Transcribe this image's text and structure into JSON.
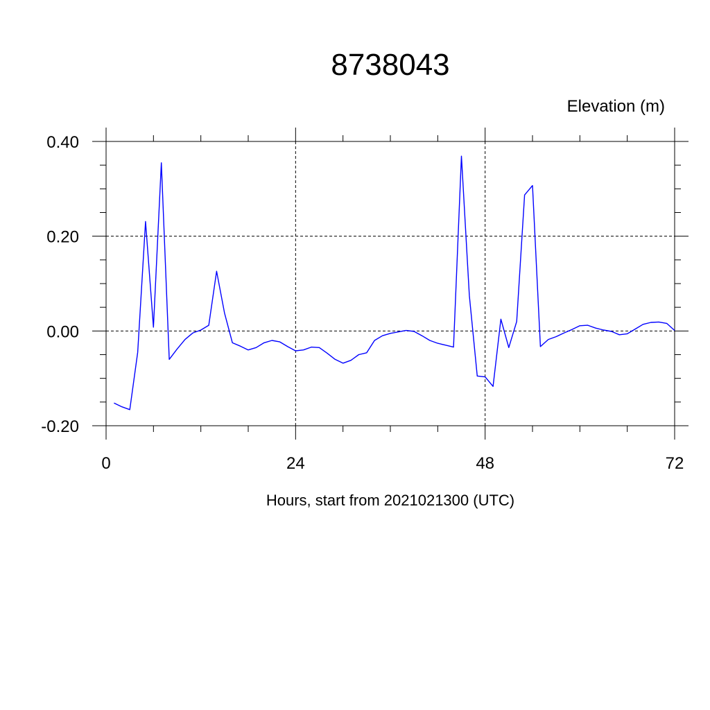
{
  "chart_data": {
    "type": "line",
    "title": "8738043",
    "ylabel": "Elevation (m)",
    "xlabel": "Hours, start from 2021021300 (UTC)",
    "xlim": [
      0,
      72
    ],
    "ylim": [
      -0.2,
      0.4
    ],
    "xticks": [
      0,
      24,
      48,
      72
    ],
    "xtick_labels": [
      "0",
      "24",
      "48",
      "72"
    ],
    "yticks": [
      -0.2,
      0.0,
      0.2,
      0.4
    ],
    "ytick_labels": [
      "-0.20",
      "0.00",
      "0.20",
      "0.40"
    ],
    "grid": true,
    "series": [
      {
        "color": "#0000ff",
        "x": [
          1,
          2,
          3,
          4,
          5,
          6,
          7,
          8,
          9,
          10,
          11,
          12,
          13,
          14,
          15,
          16,
          17,
          18,
          19,
          20,
          21,
          22,
          23,
          24,
          25,
          26,
          27,
          28,
          29,
          30,
          31,
          32,
          33,
          34,
          35,
          36,
          37,
          38,
          39,
          40,
          41,
          42,
          43,
          44,
          45,
          46,
          47,
          48,
          49,
          50,
          51,
          52,
          53,
          54,
          55,
          56,
          57,
          58,
          59,
          60,
          61,
          62,
          63,
          64,
          65,
          66,
          67,
          68,
          69,
          70,
          71,
          72
        ],
        "values": [
          -0.152,
          -0.16,
          -0.166,
          -0.045,
          0.231,
          0.008,
          0.355,
          -0.06,
          -0.038,
          -0.018,
          -0.004,
          0.002,
          0.012,
          0.126,
          0.038,
          -0.025,
          -0.032,
          -0.04,
          -0.035,
          -0.025,
          -0.02,
          -0.023,
          -0.033,
          -0.042,
          -0.04,
          -0.034,
          -0.035,
          -0.047,
          -0.06,
          -0.068,
          -0.062,
          -0.05,
          -0.046,
          -0.02,
          -0.01,
          -0.005,
          -0.002,
          0.001,
          -0.001,
          -0.01,
          -0.02,
          -0.026,
          -0.03,
          -0.034,
          0.369,
          0.075,
          -0.095,
          -0.097,
          -0.117,
          0.025,
          -0.035,
          0.02,
          0.287,
          0.307,
          -0.033,
          -0.018,
          -0.012,
          -0.004,
          0.003,
          0.011,
          0.012,
          0.006,
          0.002,
          -0.001,
          -0.008,
          -0.006,
          0.004,
          0.014,
          0.018,
          0.019,
          0.016,
          0.001
        ]
      }
    ]
  }
}
